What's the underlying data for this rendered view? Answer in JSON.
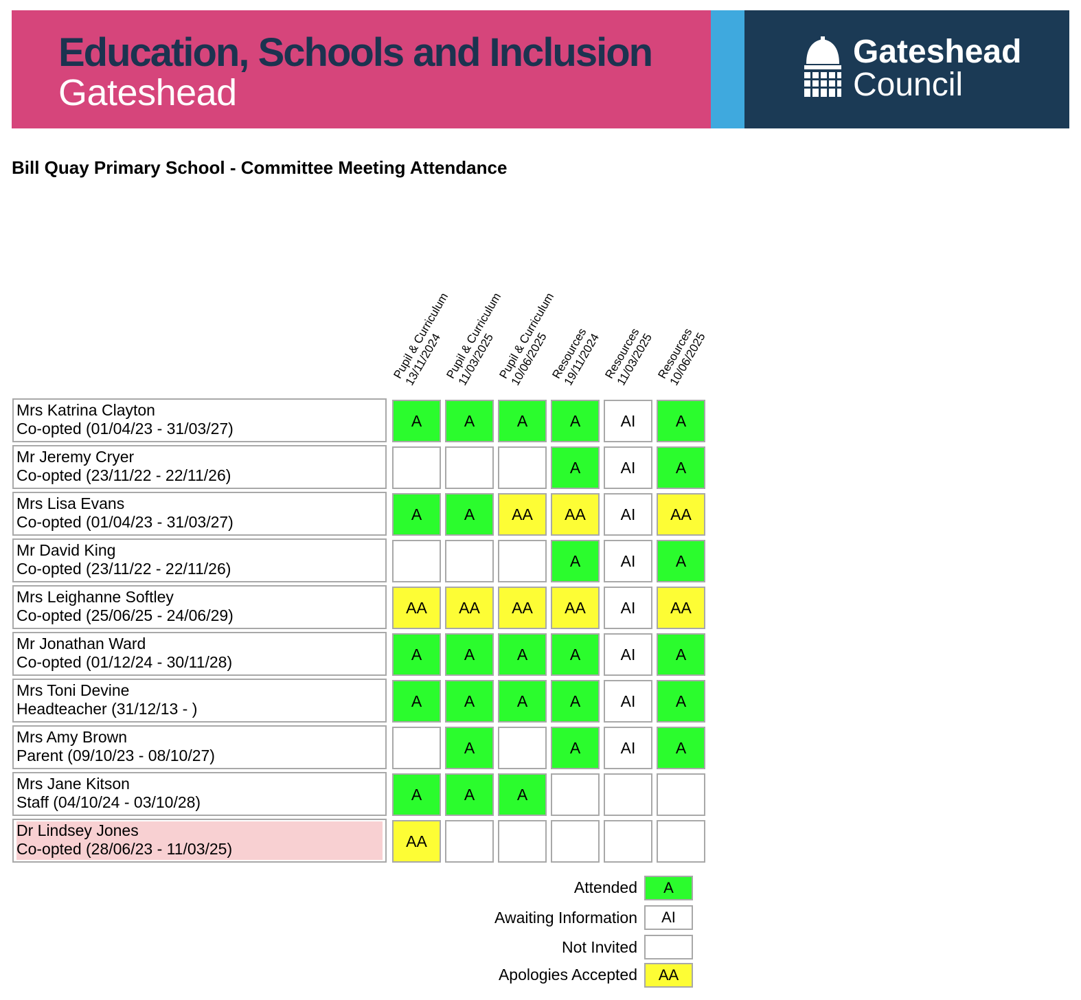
{
  "banner": {
    "title": "Education, Schools and Inclusion",
    "subtitle": "Gateshead",
    "council_line1": "Gateshead",
    "council_line2": "Council",
    "colors": {
      "pink": "#d6457b",
      "blue": "#3fa9de",
      "navy": "#1b3a55",
      "title_text": "#1c3350"
    }
  },
  "page_title": "Bill Quay Primary School - Committee Meeting Attendance",
  "columns": [
    {
      "line1": "Pupil & Curriculum",
      "line2": "13/11/2024"
    },
    {
      "line1": "Pupil & Curriculum",
      "line2": "11/03/2025"
    },
    {
      "line1": "Pupil & Curriculum",
      "line2": "10/06/2025"
    },
    {
      "line1": "Resources",
      "line2": "19/11/2024"
    },
    {
      "line1": "Resources",
      "line2": "11/03/2025"
    },
    {
      "line1": "Resources",
      "line2": "10/06/2025"
    }
  ],
  "rows": [
    {
      "name": "Mrs Katrina Clayton",
      "role": "Co-opted (01/04/23 - 31/03/27)",
      "former": false,
      "cells": [
        "A",
        "A",
        "A",
        "A",
        "AI",
        "A"
      ]
    },
    {
      "name": "Mr Jeremy Cryer",
      "role": "Co-opted (23/11/22 - 22/11/26)",
      "former": false,
      "cells": [
        "",
        "",
        "",
        "A",
        "AI",
        "A"
      ]
    },
    {
      "name": "Mrs Lisa Evans",
      "role": "Co-opted (01/04/23 - 31/03/27)",
      "former": false,
      "cells": [
        "A",
        "A",
        "AA",
        "AA",
        "AI",
        "AA"
      ]
    },
    {
      "name": "Mr David King",
      "role": "Co-opted (23/11/22 - 22/11/26)",
      "former": false,
      "cells": [
        "",
        "",
        "",
        "A",
        "AI",
        "A"
      ]
    },
    {
      "name": "Mrs Leighanne Softley",
      "role": "Co-opted (25/06/25 - 24/06/29)",
      "former": false,
      "cells": [
        "AA",
        "AA",
        "AA",
        "AA",
        "AI",
        "AA"
      ]
    },
    {
      "name": "Mr Jonathan Ward",
      "role": "Co-opted (01/12/24 - 30/11/28)",
      "former": false,
      "cells": [
        "A",
        "A",
        "A",
        "A",
        "AI",
        "A"
      ]
    },
    {
      "name": "Mrs Toni Devine",
      "role": "Headteacher (31/12/13 - )",
      "former": false,
      "cells": [
        "A",
        "A",
        "A",
        "A",
        "AI",
        "A"
      ]
    },
    {
      "name": "Mrs Amy Brown",
      "role": "Parent (09/10/23 - 08/10/27)",
      "former": false,
      "cells": [
        "",
        "A",
        "",
        "A",
        "AI",
        "A"
      ]
    },
    {
      "name": "Mrs Jane Kitson",
      "role": "Staff (04/10/24 - 03/10/28)",
      "former": false,
      "cells": [
        "A",
        "A",
        "A",
        "",
        "",
        ""
      ]
    },
    {
      "name": "Dr Lindsey Jones",
      "role": "Co-opted (28/06/23 - 11/03/25)",
      "former": true,
      "cells": [
        "AA",
        "",
        "",
        "",
        "",
        ""
      ]
    }
  ],
  "legend": [
    {
      "label": "Attended",
      "code": "A",
      "color": "#2bfc2d"
    },
    {
      "label": "Awaiting Information",
      "code": "AI",
      "color": "#ffffff"
    },
    {
      "label": "Not Invited",
      "code": "",
      "color": "#ffffff"
    },
    {
      "label": "Apologies Accepted",
      "code": "AA",
      "color": "#fdfd35"
    }
  ],
  "status_colors": {
    "A": "#2bfc2d",
    "AA": "#fdfd35",
    "AI": "#ffffff",
    "former_member_row": "#f8d0d2"
  }
}
